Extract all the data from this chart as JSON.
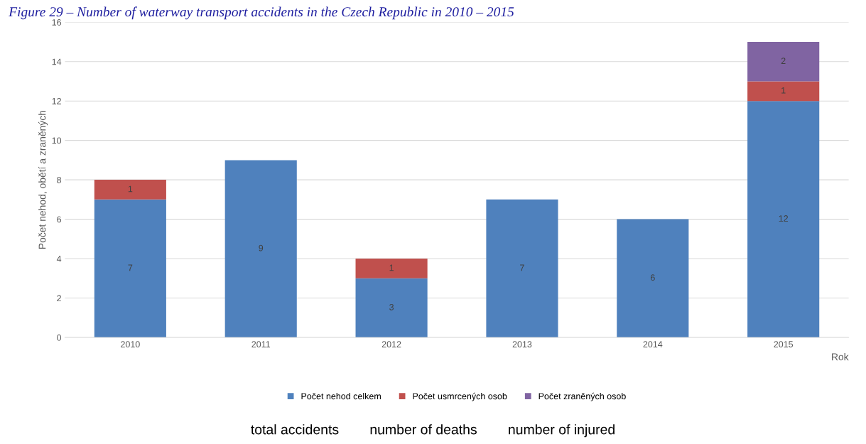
{
  "chart_data": {
    "type": "bar",
    "stacked": true,
    "title": "Figure 29 – Number of waterway transport accidents in the Czech Republic in 2010 – 2015",
    "xlabel": "Rok",
    "ylabel": "Počet nehod, obětí a zraněných",
    "categories": [
      "2010",
      "2011",
      "2012",
      "2013",
      "2014",
      "2015"
    ],
    "series": [
      {
        "name": "Počet nehod celkem",
        "color": "#4f81bd",
        "values": [
          7,
          9,
          3,
          7,
          6,
          12
        ],
        "value_labels": [
          "7",
          "9",
          "3",
          "7",
          "6",
          "12"
        ]
      },
      {
        "name": "Počet usmrcených osob",
        "color": "#c0504d",
        "values": [
          1,
          0,
          1,
          0,
          0,
          1
        ],
        "value_labels": [
          "1",
          null,
          "1",
          null,
          null,
          "1"
        ]
      },
      {
        "name": "Počet zraněných osob",
        "color": "#8064a2",
        "values": [
          0,
          0,
          0,
          0,
          0,
          2
        ],
        "value_labels": [
          null,
          null,
          null,
          null,
          null,
          "2"
        ]
      }
    ],
    "ylim": [
      0,
      16
    ],
    "yticks": [
      0,
      2,
      4,
      6,
      8,
      10,
      12,
      14,
      16
    ],
    "grid": "y",
    "legend": "bottom",
    "annotations": [
      "total accidents        number of deaths        number of injured"
    ]
  }
}
